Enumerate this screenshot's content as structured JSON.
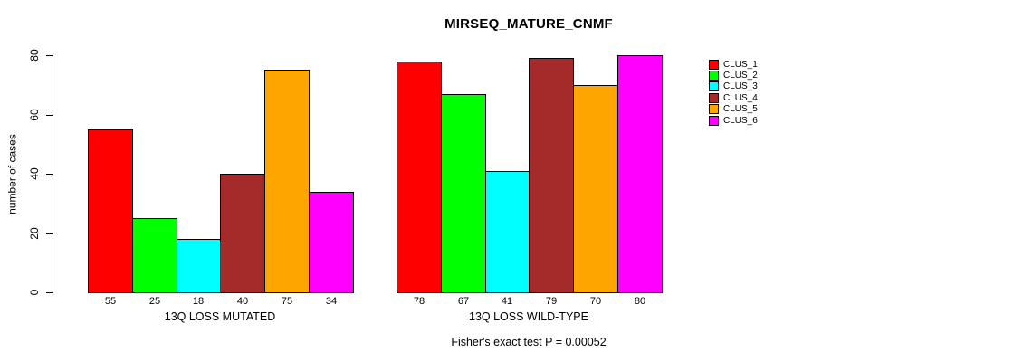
{
  "chart_data": {
    "type": "bar",
    "title": "MIRSEQ_MATURE_CNMF",
    "ylabel": "number of cases",
    "xlabel": "",
    "ylim": [
      0,
      80
    ],
    "yticks": [
      0,
      20,
      40,
      60,
      80
    ],
    "grid": false,
    "bar_value_labels": true,
    "legend_position": "right",
    "legend": [
      "CLUS_1",
      "CLUS_2",
      "CLUS_3",
      "CLUS_4",
      "CLUS_5",
      "CLUS_6"
    ],
    "series_colors": [
      "#FF0000",
      "#00FF00",
      "#00FFFF",
      "#A52A2A",
      "#FFA500",
      "#FF00FF"
    ],
    "groups": [
      {
        "label": "13Q LOSS MUTATED",
        "values": [
          55,
          25,
          18,
          40,
          75,
          34
        ]
      },
      {
        "label": "13Q LOSS WILD-TYPE",
        "values": [
          78,
          67,
          41,
          79,
          70,
          80
        ]
      }
    ],
    "annotation": "Fisher's exact test P = 0.00052"
  },
  "colors": {
    "background": "#FFFFFF",
    "text": "#000000",
    "axis": "#000000",
    "bar_border": "#000000"
  }
}
